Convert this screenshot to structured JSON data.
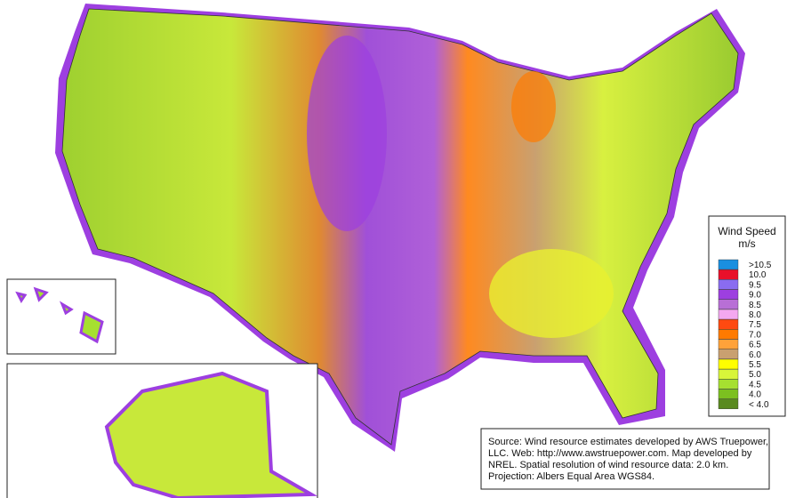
{
  "legend": {
    "title": "Wind Speed",
    "unit": "m/s",
    "items": [
      {
        "label": ">10.5",
        "color": "#1a8fe0"
      },
      {
        "label": "10.0",
        "color": "#e8102a"
      },
      {
        "label": "9.5",
        "color": "#8a6cf0"
      },
      {
        "label": "9.0",
        "color": "#9d3fe0"
      },
      {
        "label": "8.5",
        "color": "#b86fd6"
      },
      {
        "label": "8.0",
        "color": "#f4a8f0"
      },
      {
        "label": "7.5",
        "color": "#ff4a10"
      },
      {
        "label": "7.0",
        "color": "#ff7a00"
      },
      {
        "label": "6.5",
        "color": "#ffa23a"
      },
      {
        "label": "6.0",
        "color": "#c9a070"
      },
      {
        "label": "5.5",
        "color": "#ffff00"
      },
      {
        "label": "5.0",
        "color": "#d8f53a"
      },
      {
        "label": "4.5",
        "color": "#a6e030"
      },
      {
        "label": "4.0",
        "color": "#7cc020"
      },
      {
        "label": "< 4.0",
        "color": "#5a8a20"
      }
    ]
  },
  "source": {
    "lines": [
      "Source: Wind resource estimates developed by AWS Truepower,",
      "LLC.  Web: http://www.awstruepower.com. Map developed by",
      "NREL.  Spatial resolution of wind resource data: 2.0 km.",
      "Projection: Albers Equal Area WGS84."
    ]
  }
}
